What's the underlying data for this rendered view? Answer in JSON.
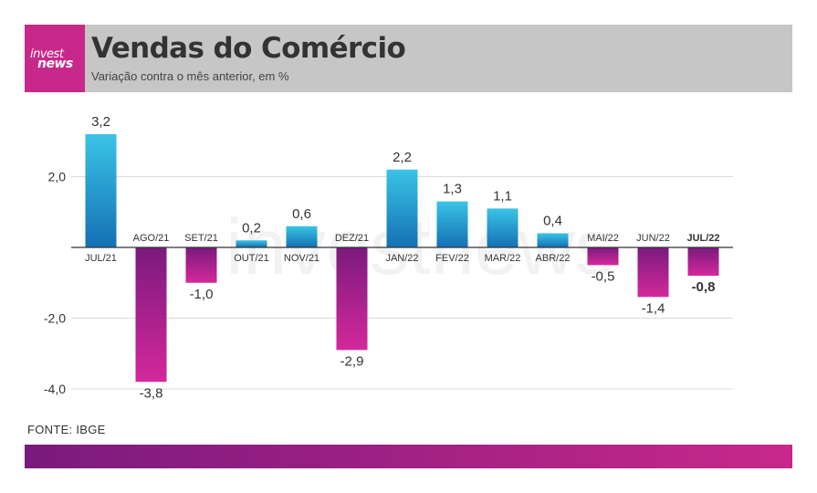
{
  "header": {
    "logo_line1": "invest",
    "logo_line2": "news",
    "title": "Vendas do Comércio",
    "subtitle": "Variação contra o mês anterior, em %"
  },
  "source": "FONTE: IBGE",
  "watermark": "investnews",
  "colors": {
    "positive_top": "#3ac4e6",
    "positive_bottom": "#1470b4",
    "negative_top": "#7a1a7e",
    "negative_bottom": "#d4289a",
    "header_bg": "#c6c6c6",
    "logo_bg": "#c8288a"
  },
  "chart_data": {
    "type": "bar",
    "categories": [
      "JUL/21",
      "AGO/21",
      "SET/21",
      "OUT/21",
      "NOV/21",
      "DEZ/21",
      "JAN/22",
      "FEV/22",
      "MAR/22",
      "ABR/22",
      "MAI/22",
      "JUN/22",
      "JUL/22"
    ],
    "values": [
      3.2,
      -3.8,
      -1.0,
      0.2,
      0.6,
      -2.9,
      2.2,
      1.3,
      1.1,
      0.4,
      -0.5,
      -1.4,
      -0.8
    ],
    "value_labels": [
      "3,2",
      "-3,8",
      "-1,0",
      "0,2",
      "0,6",
      "-2,9",
      "2,2",
      "1,3",
      "1,1",
      "0,4",
      "-0,5",
      "-1,4",
      "-0,8"
    ],
    "highlight_category": "JUL/22",
    "yticks": [
      2.0,
      -2.0,
      -4.0
    ],
    "ytick_labels": [
      "2,0",
      "-2,0",
      "-4,0"
    ],
    "ylim": [
      -4.0,
      3.2
    ],
    "grid": true,
    "legend": "none"
  }
}
